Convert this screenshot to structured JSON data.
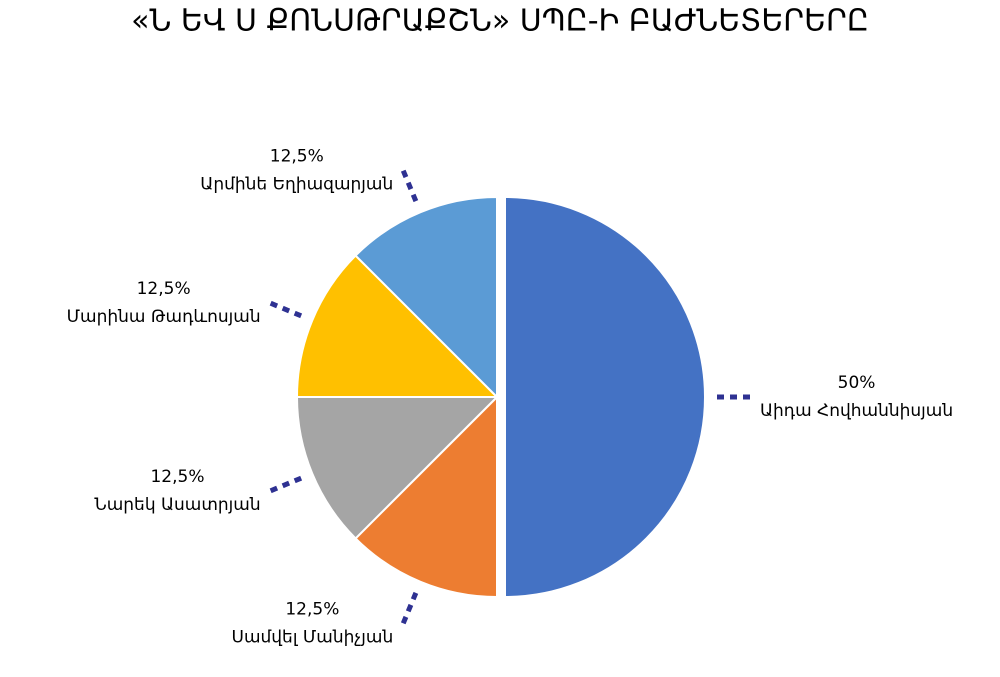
{
  "chart_data": {
    "type": "pie",
    "title": "«Ն ԵՎ Ս ՔՈՆՍԹՐԱՔՇՆ» ՍՊԸ-Ի ԲԱԺՆԵՏԵՐԵՐԸ",
    "categories": [
      "Աիդա Հովհաննիսյան",
      "Սամվել Մանիչյան",
      "Նարեկ Ասատրյան",
      "Մարինա Թադևոսյան",
      "Արմինե Եղիազարյան"
    ],
    "values": [
      50,
      12.5,
      12.5,
      12.5,
      12.5
    ],
    "value_labels": [
      "50%",
      "12,5%",
      "12,5%",
      "12,5%",
      "12,5%"
    ],
    "colors": [
      "#4472c4",
      "#ed7d31",
      "#a5a5a5",
      "#ffc000",
      "#5b9bd5"
    ]
  }
}
